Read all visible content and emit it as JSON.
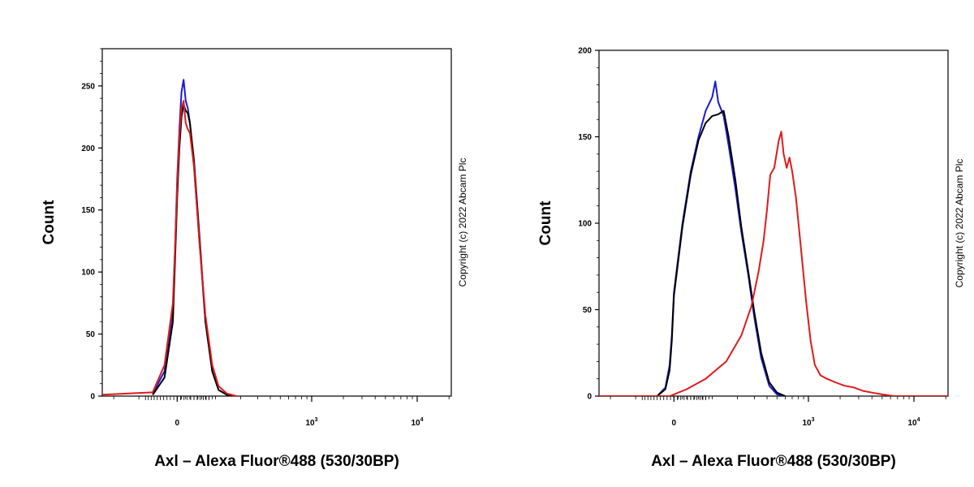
{
  "chart_data": [
    {
      "type": "line",
      "xlabel": "Axl – Alexa Fluor®488 (530/30BP)",
      "ylabel": "Count",
      "copyright": "Copyright (c) 2022 Abcam Plc",
      "x_scale": "biexponential",
      "ylim": [
        0,
        280
      ],
      "y_ticks": [
        0,
        50,
        100,
        150,
        200,
        250
      ],
      "x_ticks": [
        {
          "value": 0,
          "label": "0"
        },
        {
          "value": 1000,
          "label": "10",
          "exp": "3"
        },
        {
          "value": 10000,
          "label": "10",
          "exp": "4"
        }
      ],
      "series": [
        {
          "color": "#1a1ad6",
          "points": [
            [
              -60,
              2
            ],
            [
              -30,
              20
            ],
            [
              -10,
              70
            ],
            [
              -5,
              120
            ],
            [
              0,
              175
            ],
            [
              5,
              215
            ],
            [
              10,
              245
            ],
            [
              15,
              255
            ],
            [
              20,
              238
            ],
            [
              25,
              232
            ],
            [
              30,
              220
            ],
            [
              40,
              185
            ],
            [
              55,
              120
            ],
            [
              70,
              60
            ],
            [
              90,
              20
            ],
            [
              110,
              5
            ],
            [
              140,
              1
            ],
            [
              180,
              0
            ]
          ]
        },
        {
          "color": "#000000",
          "points": [
            [
              -60,
              1
            ],
            [
              -30,
              15
            ],
            [
              -10,
              60
            ],
            [
              -5,
              110
            ],
            [
              0,
              160
            ],
            [
              5,
              200
            ],
            [
              10,
              225
            ],
            [
              15,
              235
            ],
            [
              20,
              230
            ],
            [
              25,
              228
            ],
            [
              30,
              220
            ],
            [
              40,
              190
            ],
            [
              55,
              125
            ],
            [
              70,
              60
            ],
            [
              90,
              20
            ],
            [
              110,
              5
            ],
            [
              140,
              1
            ],
            [
              180,
              0
            ]
          ]
        },
        {
          "color": "#e01a1a",
          "points": [
            [
              -3000,
              28
            ],
            [
              -2600,
              8
            ],
            [
              -2000,
              1
            ],
            [
              -500,
              0
            ],
            [
              -60,
              3
            ],
            [
              -30,
              25
            ],
            [
              -10,
              75
            ],
            [
              -5,
              120
            ],
            [
              0,
              170
            ],
            [
              5,
              210
            ],
            [
              10,
              232
            ],
            [
              15,
              238
            ],
            [
              20,
              220
            ],
            [
              25,
              215
            ],
            [
              30,
              212
            ],
            [
              40,
              185
            ],
            [
              55,
              120
            ],
            [
              70,
              65
            ],
            [
              90,
              25
            ],
            [
              110,
              8
            ],
            [
              140,
              2
            ],
            [
              180,
              0
            ]
          ]
        }
      ]
    },
    {
      "type": "line",
      "xlabel": "Axl – Alexa Fluor®488 (530/30BP)",
      "ylabel": "Count",
      "copyright": "Copyright (c) 2022 Abcam Plc",
      "x_scale": "biexponential",
      "ylim": [
        0,
        200
      ],
      "y_ticks": [
        0,
        50,
        100,
        150,
        200
      ],
      "x_ticks": [
        {
          "value": 0,
          "label": "0"
        },
        {
          "value": 1000,
          "label": "10",
          "exp": "3"
        },
        {
          "value": 10000,
          "label": "10",
          "exp": "4"
        }
      ],
      "series": [
        {
          "color": "#1a1ad6",
          "points": [
            [
              -40,
              0
            ],
            [
              -20,
              5
            ],
            [
              -10,
              18
            ],
            [
              -5,
              35
            ],
            [
              0,
              60
            ],
            [
              20,
              100
            ],
            [
              40,
              130
            ],
            [
              60,
              150
            ],
            [
              80,
              165
            ],
            [
              100,
              173
            ],
            [
              110,
              182
            ],
            [
              120,
              170
            ],
            [
              140,
              162
            ],
            [
              160,
              145
            ],
            [
              190,
              120
            ],
            [
              220,
              95
            ],
            [
              260,
              70
            ],
            [
              300,
              45
            ],
            [
              350,
              22
            ],
            [
              420,
              6
            ],
            [
              500,
              1
            ],
            [
              600,
              0
            ]
          ]
        },
        {
          "color": "#000000",
          "points": [
            [
              -40,
              0
            ],
            [
              -20,
              4
            ],
            [
              -10,
              15
            ],
            [
              -5,
              32
            ],
            [
              0,
              58
            ],
            [
              20,
              98
            ],
            [
              40,
              128
            ],
            [
              60,
              148
            ],
            [
              80,
              158
            ],
            [
              100,
              162
            ],
            [
              120,
              163
            ],
            [
              140,
              165
            ],
            [
              160,
              150
            ],
            [
              190,
              125
            ],
            [
              220,
              98
            ],
            [
              260,
              72
            ],
            [
              300,
              48
            ],
            [
              350,
              25
            ],
            [
              420,
              8
            ],
            [
              500,
              2
            ],
            [
              600,
              0
            ]
          ]
        },
        {
          "color": "#e01a1a",
          "points": [
            [
              -3000,
              16
            ],
            [
              -2600,
              5
            ],
            [
              -2000,
              1
            ],
            [
              -500,
              0
            ],
            [
              -10,
              0
            ],
            [
              0,
              1
            ],
            [
              30,
              4
            ],
            [
              80,
              10
            ],
            [
              150,
              20
            ],
            [
              220,
              35
            ],
            [
              280,
              52
            ],
            [
              330,
              72
            ],
            [
              370,
              90
            ],
            [
              400,
              108
            ],
            [
              430,
              128
            ],
            [
              470,
              132
            ],
            [
              520,
              148
            ],
            [
              550,
              153
            ],
            [
              580,
              140
            ],
            [
              620,
              132
            ],
            [
              660,
              138
            ],
            [
              700,
              130
            ],
            [
              760,
              115
            ],
            [
              850,
              85
            ],
            [
              950,
              55
            ],
            [
              1050,
              32
            ],
            [
              1150,
              18
            ],
            [
              1300,
              12
            ],
            [
              1500,
              10
            ],
            [
              1800,
              8
            ],
            [
              2200,
              6
            ],
            [
              2700,
              5
            ],
            [
              3300,
              3
            ],
            [
              4000,
              2
            ],
            [
              5000,
              1
            ],
            [
              6500,
              0
            ],
            [
              10000,
              0
            ],
            [
              25000,
              0
            ]
          ]
        }
      ]
    }
  ]
}
